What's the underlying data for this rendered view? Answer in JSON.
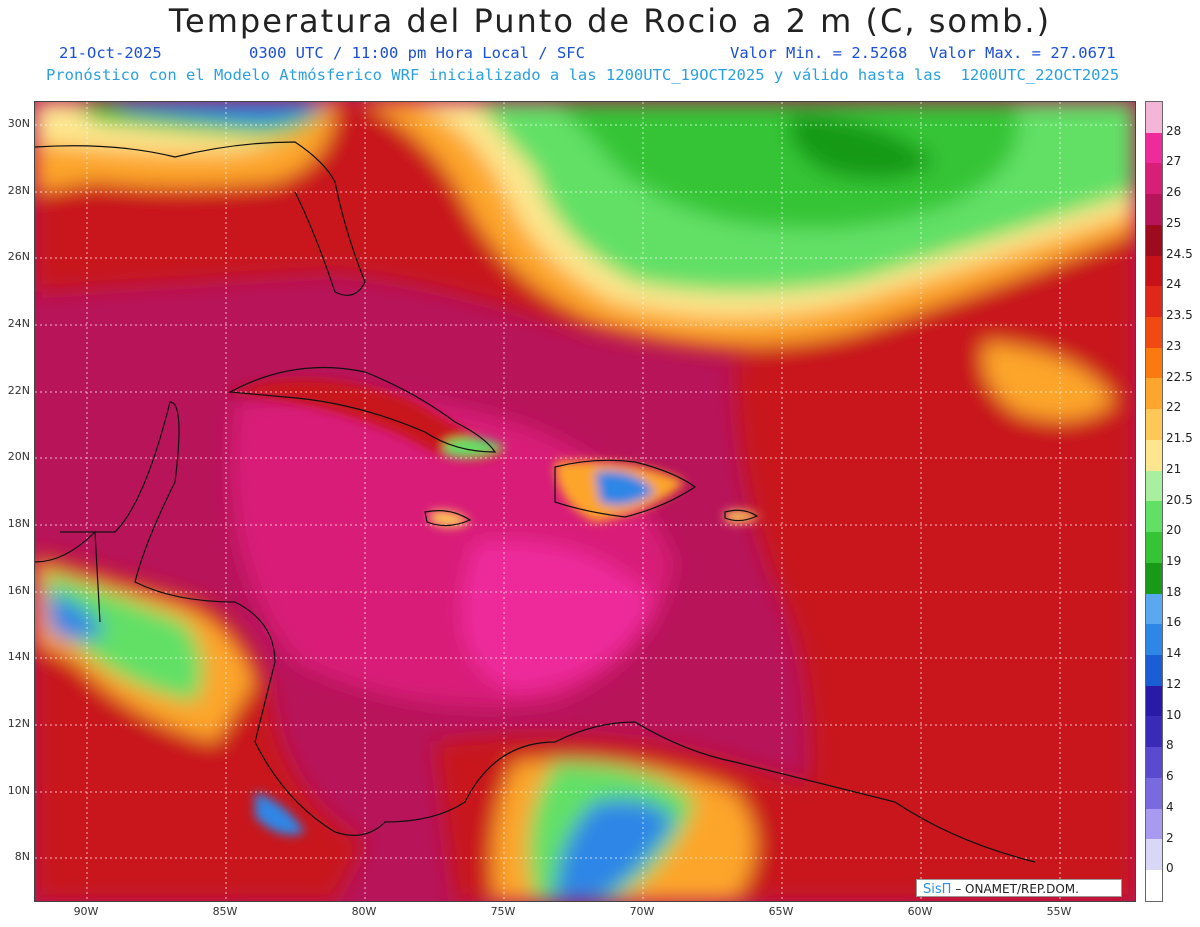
{
  "header": {
    "title": "Temperatura del Punto de Rocio a 2 m (C, somb.)",
    "date": "21-Oct-2025",
    "time": "0300 UTC / 11:00 pm Hora Local / SFC",
    "min_label": "Valor Min. = 2.5268",
    "max_label": "Valor Max. = 27.0671",
    "model_info": "Pronóstico con el Modelo Atmósferico WRF inicializado a las 1200UTC_19OCT2025 y válido hasta las  1200UTC_22OCT2025"
  },
  "map": {
    "lat_labels": [
      "30N",
      "28N",
      "26N",
      "24N",
      "22N",
      "20N",
      "18N",
      "16N",
      "14N",
      "12N",
      "10N",
      "8N"
    ],
    "lon_labels": [
      "90W",
      "85W",
      "80W",
      "75W",
      "70W",
      "65W",
      "60W",
      "55W"
    ],
    "credit_logo": "SisΠ",
    "credit_text": " – ONAMET/REP.DOM."
  },
  "colorbar": {
    "labels": [
      "28",
      "27",
      "26",
      "25",
      "24.5",
      "24",
      "23.5",
      "23",
      "22.5",
      "22",
      "21.5",
      "21",
      "20.5",
      "20",
      "19",
      "18",
      "16",
      "14",
      "12",
      "10",
      "8",
      "6",
      "4",
      "2",
      "0"
    ],
    "colors": [
      "#f4b6d8",
      "#ee2b9b",
      "#d81f78",
      "#b8145a",
      "#9e0a1e",
      "#c8121a",
      "#e0281a",
      "#f04a12",
      "#fa7a10",
      "#fda52c",
      "#fdc858",
      "#fde68e",
      "#a8f0a0",
      "#62e066",
      "#36c436",
      "#189a18",
      "#5aa8f0",
      "#2e86e6",
      "#1a5ed6",
      "#2a1aa8",
      "#3a2ab8",
      "#5a4ad0",
      "#7a6ae0",
      "#a89af0",
      "#d8d8f6",
      "#ffffff"
    ]
  }
}
